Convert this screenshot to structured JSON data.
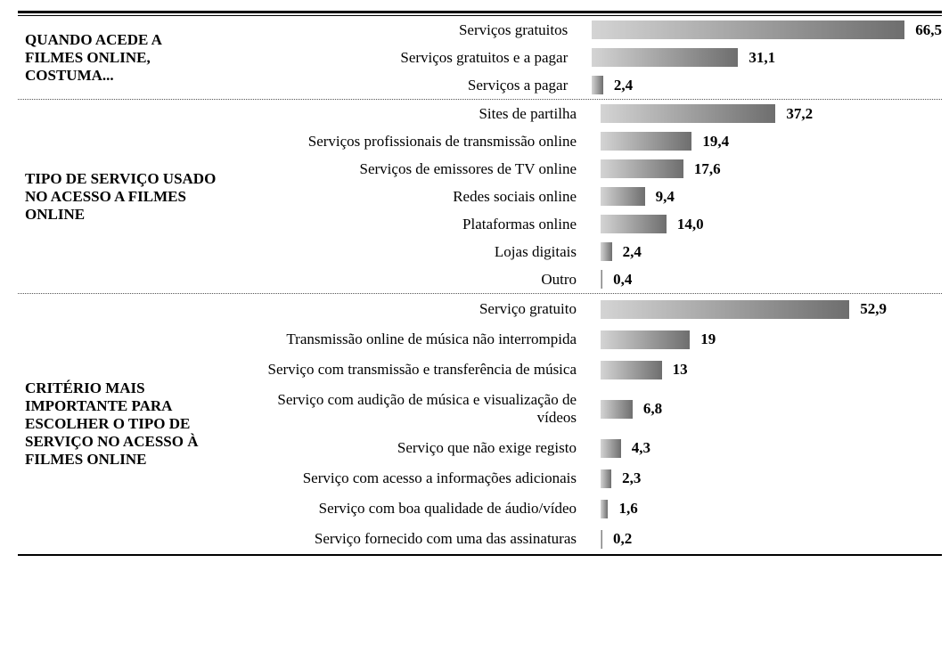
{
  "chart_data": {
    "type": "bar",
    "color": "#6e6e6e",
    "groups": [
      {
        "title": "QUANDO ACEDE A FILMES ONLINE, COSTUMA...",
        "categories": [
          "Serviços gratuitos",
          "Serviços gratuitos e a pagar",
          "Serviços a pagar"
        ],
        "values": [
          66.5,
          31.1,
          2.4
        ],
        "value_labels": [
          "66,5",
          "31,1",
          "2,4"
        ]
      },
      {
        "title": "TIPO DE SERVIÇO USADO NO ACESSO A FILMES ONLINE",
        "categories": [
          "Sites de partilha",
          "Serviços profissionais de transmissão online",
          "Serviços de emissores de TV online",
          "Redes sociais online",
          "Plataformas online",
          "Lojas digitais",
          "Outro"
        ],
        "values": [
          37.2,
          19.4,
          17.6,
          9.4,
          14.0,
          2.4,
          0.4
        ],
        "value_labels": [
          "37,2",
          "19,4",
          "17,6",
          "9,4",
          "14,0",
          "2,4",
          "0,4"
        ]
      },
      {
        "title": "CRITÉRIO MAIS IMPORTANTE PARA ESCOLHER O TIPO DE SERVIÇO NO ACESSO À FILMES ONLINE",
        "categories": [
          "Serviço gratuito",
          "Transmissão online de música não interrompida",
          "Serviço com transmissão e transferência de música",
          "Serviço com audição de música e visualização de vídeos",
          "Serviço que não exige registo",
          "Serviço com acesso a informações adicionais",
          "Serviço com boa qualidade de áudio/vídeo",
          "Serviço fornecido com uma das assinaturas"
        ],
        "values": [
          52.9,
          19,
          13,
          6.8,
          4.3,
          2.3,
          1.6,
          0.2
        ],
        "value_labels": [
          "52,9",
          "19",
          "13",
          "6,8",
          "4,3",
          "2,3",
          "1,6",
          "0,2"
        ]
      }
    ]
  }
}
